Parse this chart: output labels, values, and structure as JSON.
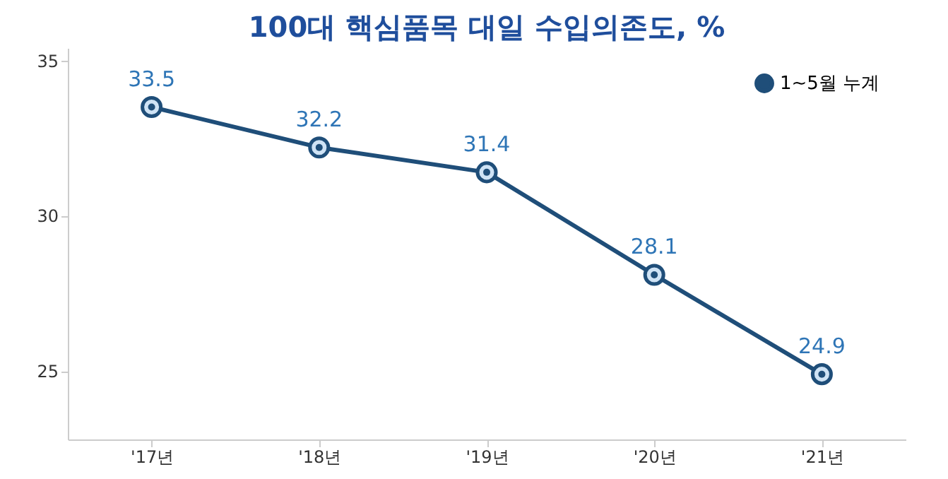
{
  "chart_data": {
    "type": "line",
    "title": "100대 핵심품목 대일 수입의존도, %",
    "categories": [
      "'17년",
      "'18년",
      "'19년",
      "'20년",
      "'21년"
    ],
    "series": [
      {
        "name": "1~5월 누계",
        "color": "#1f4e79",
        "values": [
          33.5,
          32.2,
          31.4,
          28.1,
          24.9
        ]
      }
    ],
    "ylim": [
      22.8,
      35.4
    ],
    "yticks": [
      25,
      30,
      35
    ],
    "grid": false,
    "legend": "top right",
    "marker": "circle",
    "line_style": "solid",
    "data_labels": true
  }
}
